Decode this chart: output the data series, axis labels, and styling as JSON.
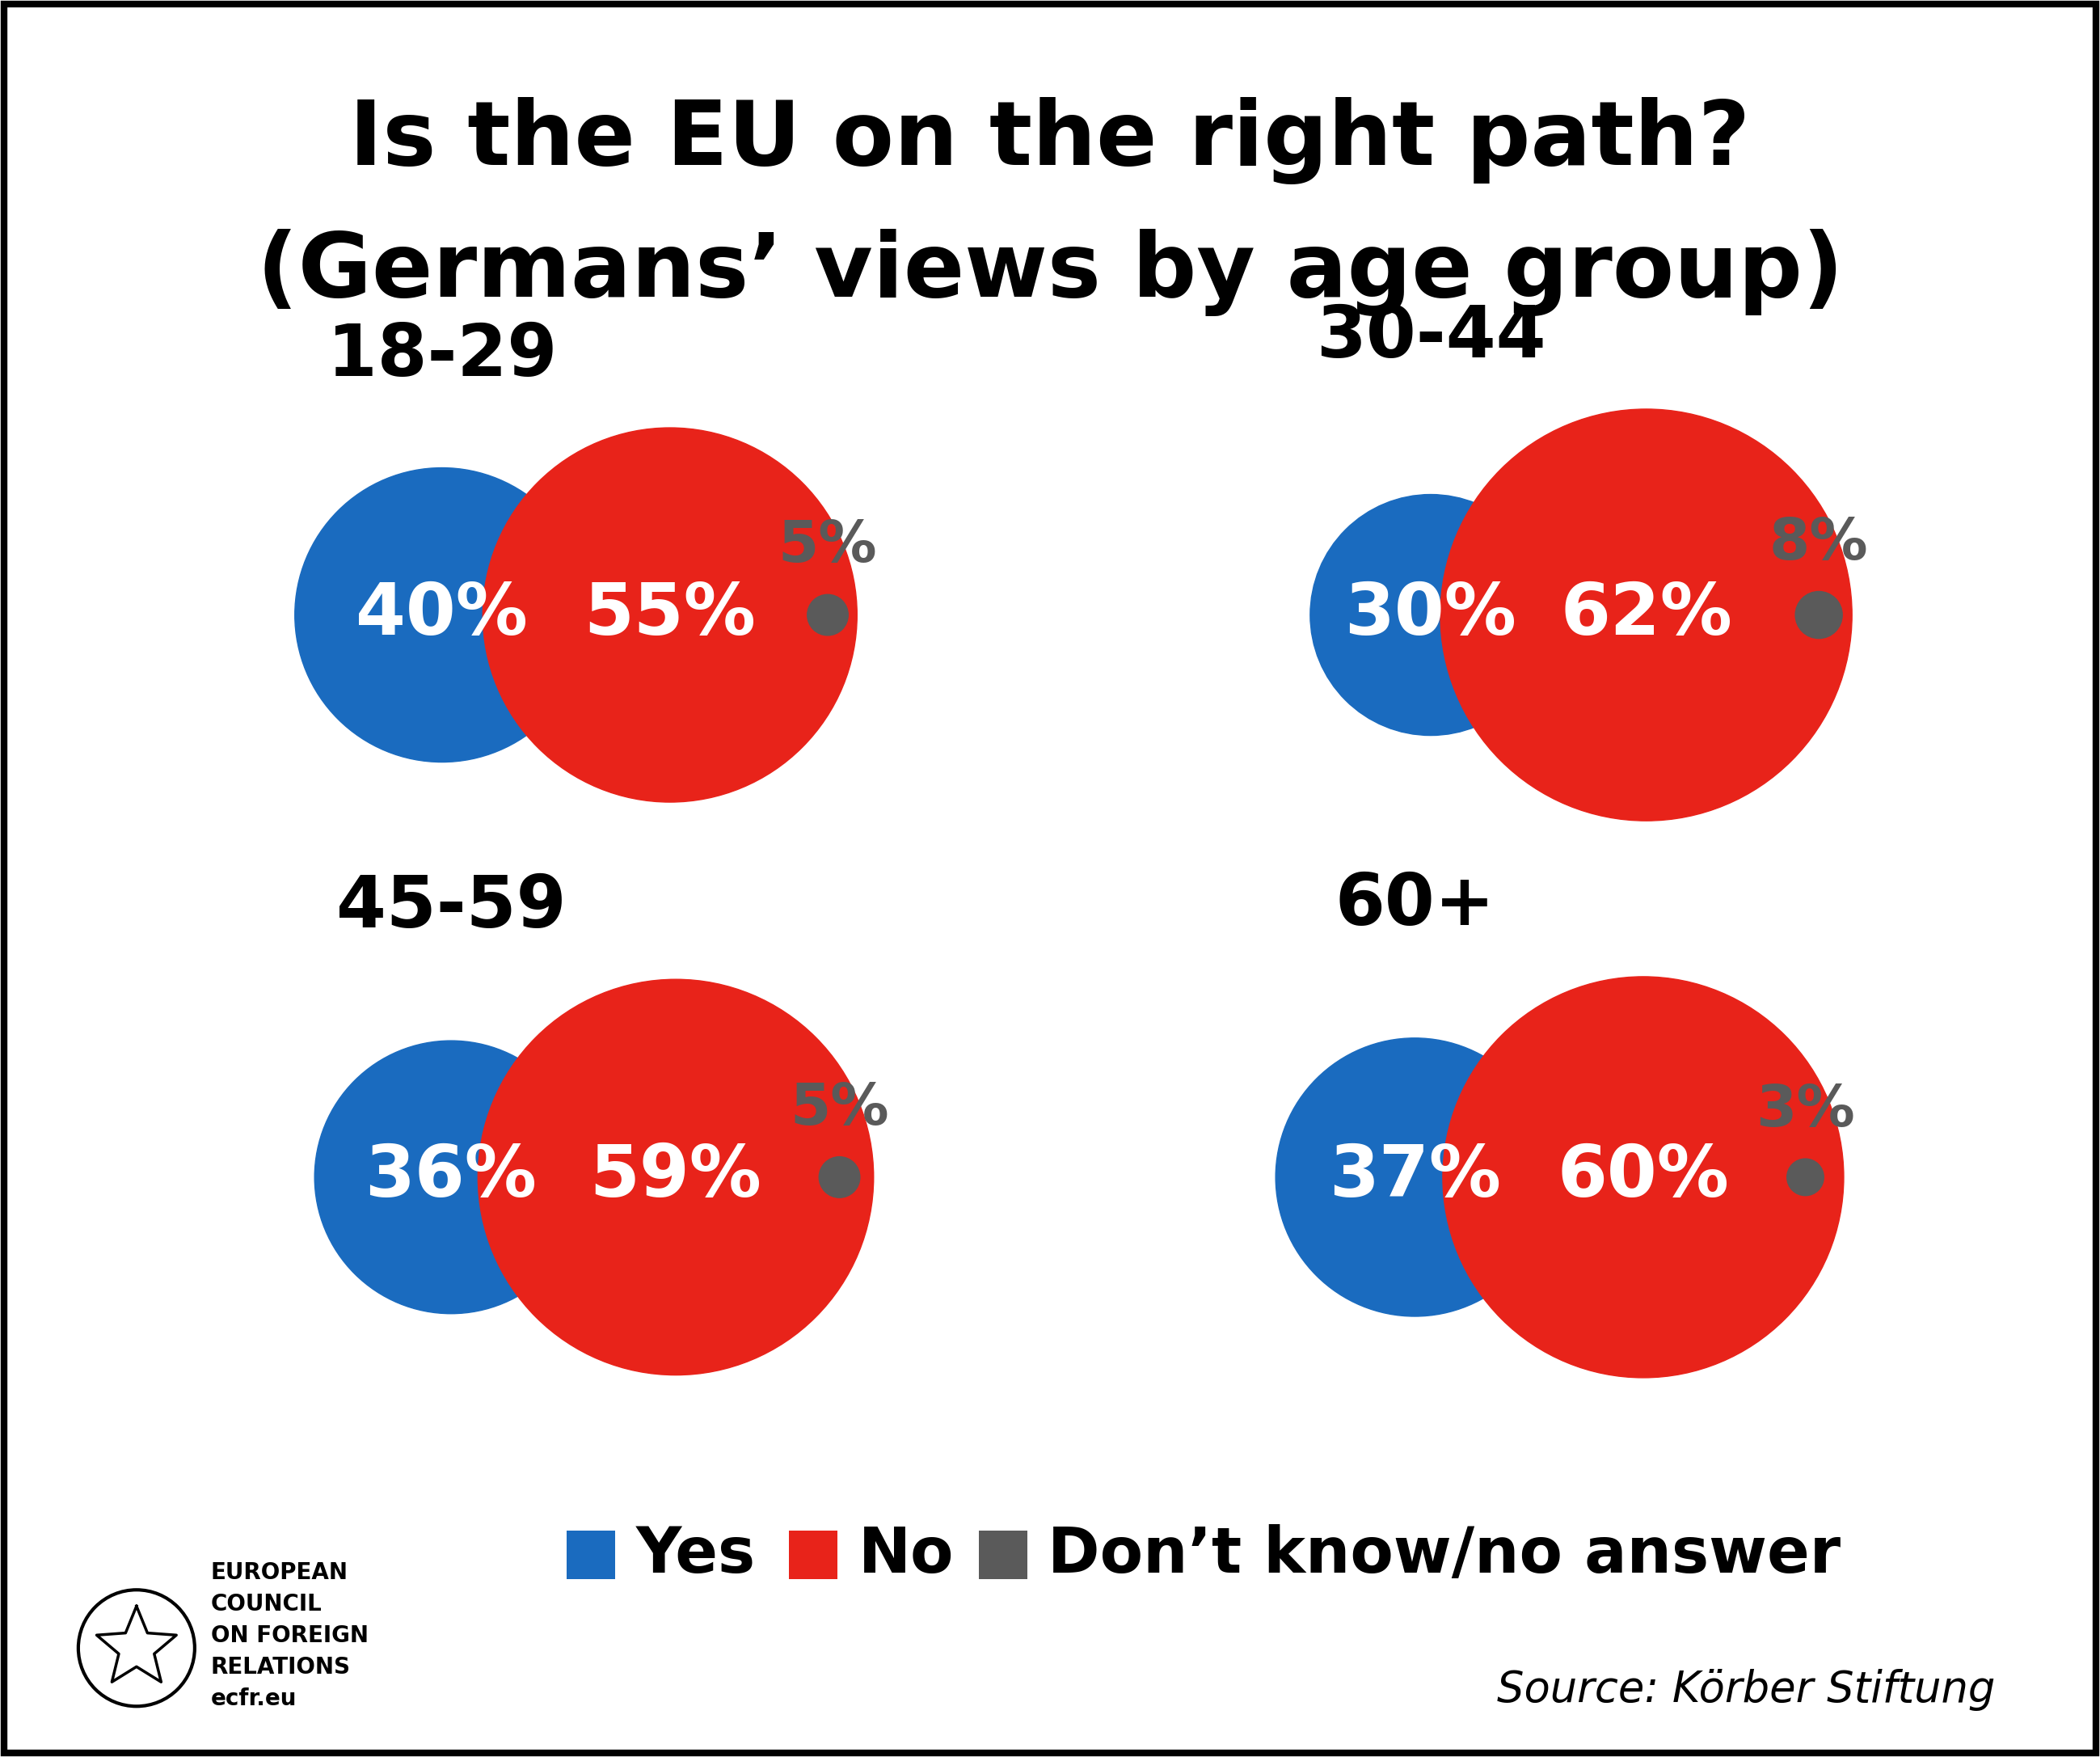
{
  "title_line1": "Is the EU on the right path?",
  "title_line2": "(Germans’ views by age group)",
  "groups": [
    {
      "label": "18-29",
      "yes": 40,
      "no": 55,
      "dk": 5,
      "col": 0,
      "row": 0
    },
    {
      "label": "30-44",
      "yes": 30,
      "no": 62,
      "dk": 8,
      "col": 1,
      "row": 0
    },
    {
      "label": "45-59",
      "yes": 36,
      "no": 59,
      "dk": 5,
      "col": 0,
      "row": 1
    },
    {
      "label": "60+",
      "yes": 37,
      "no": 60,
      "dk": 3,
      "col": 1,
      "row": 1
    }
  ],
  "yes_color": "#1a6bbf",
  "no_color": "#e8231a",
  "dk_color": "#5a5a5a",
  "bg_color": "#ffffff",
  "text_color_white": "#ffffff",
  "text_color_dk": "#5a5a5a",
  "text_color_black": "#000000",
  "source_text": "Source: Körber Stiftung",
  "legend_yes": "Yes",
  "legend_no": "No",
  "legend_dk": "Don’t know/no answer"
}
